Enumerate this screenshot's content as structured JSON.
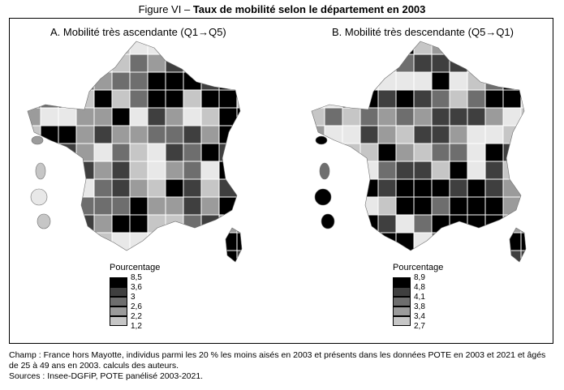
{
  "figure": {
    "label": "Figure VI –",
    "title": "Taux de mobilité selon le département en 2003"
  },
  "colors": {
    "class_1": "#e8e8e8",
    "class_2": "#c6c6c6",
    "class_3": "#9b9b9b",
    "class_4": "#6e6e6e",
    "class_5": "#3f3f3f",
    "class_6": "#000000",
    "border": "#ffffff"
  },
  "panels": [
    {
      "title": "A. Mobilité très ascendante (Q1→Q5)",
      "legend": {
        "title": "Pourcentage",
        "breaks": [
          "8,5",
          "3,6",
          "3",
          "2,6",
          "2,2",
          "1,2"
        ]
      }
    },
    {
      "title": "B. Mobilité très descendante (Q5→Q1)",
      "legend": {
        "title": "Pourcentage",
        "breaks": [
          "8,9",
          "4,8",
          "4,1",
          "3,8",
          "3,4",
          "2,7"
        ]
      }
    }
  ],
  "footer": {
    "champ": "Champ : France hors Mayotte, individus parmi les 20 % les moins aisés en 2003 et présents dans les données POTE en 2003 et 2021 et âgés de 25 à 49 ans en 2003. calculs des auteurs.",
    "sources": "Sources : Insee-DGFiP, POTE panélisé 2003-2021."
  }
}
